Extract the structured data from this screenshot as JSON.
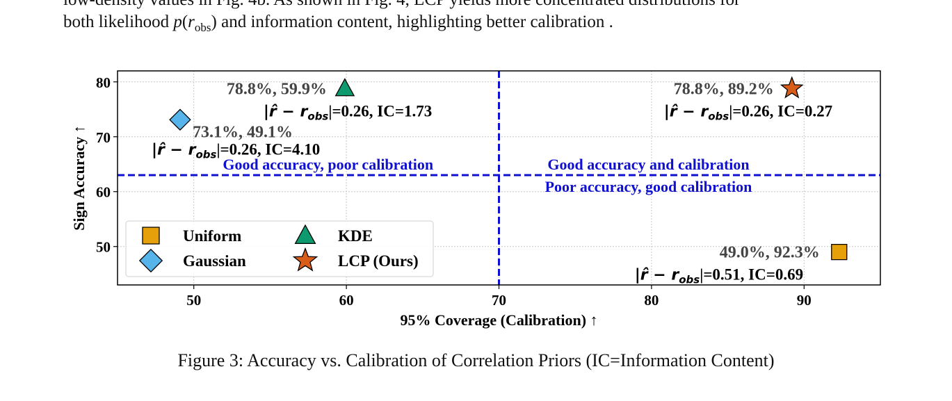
{
  "text": {
    "line1": "low-density values in Fig. 4b. As shown in Fig. 4, LCP yields more concentrated distributions for",
    "line2_a": "both likelihood ",
    "line2_p": "p",
    "line2_r": "r",
    "line2_sub": "obs",
    "line2_b": " and information content, highlighting better calibration .",
    "caption": "Figure 3: Accuracy vs. Calibration of Correlation Priors (IC=Information Content)"
  },
  "chart_data": {
    "type": "scatter",
    "xlabel": "95% Coverage (Calibration) ↑",
    "ylabel": "Sign Accuracy ↑",
    "xlim": [
      45,
      95
    ],
    "ylim": [
      43,
      82
    ],
    "xticks": [
      50,
      60,
      70,
      80,
      90
    ],
    "yticks": [
      50,
      60,
      70,
      80
    ],
    "grid": true,
    "legend_position": "lower-left",
    "reference_lines": {
      "x": 70,
      "y": 63,
      "color": "#1010d0"
    },
    "quadrant_labels": [
      "Good accuracy, poor calibration",
      "Good accuracy and calibration",
      "Poor accuracy, good calibration"
    ],
    "series": [
      {
        "name": "Uniform",
        "marker": "square",
        "color": "#e6a00a",
        "x": 92.3,
        "y": 49.0,
        "label_values": "49.0%, 92.3%",
        "label_metric": "=0.51, IC=0.69"
      },
      {
        "name": "Gaussian",
        "marker": "diamond",
        "color": "#57b4ea",
        "x": 49.1,
        "y": 73.1,
        "label_values": "73.1%, 49.1%",
        "label_metric": "=0.26, IC=4.10"
      },
      {
        "name": "KDE",
        "marker": "triangle",
        "color": "#0e9a6f",
        "x": 59.9,
        "y": 78.8,
        "label_values": "78.8%, 59.9%",
        "label_metric": "=0.26, IC=1.73"
      },
      {
        "name": "LCP (Ours)",
        "marker": "star",
        "color": "#d85d18",
        "x": 89.2,
        "y": 78.8,
        "label_values": "78.8%, 89.2%",
        "label_metric": "=0.26, IC=0.27"
      }
    ],
    "metric_symbol": "|r̂ − r",
    "metric_sub": "obs",
    "metric_close": "|"
  }
}
